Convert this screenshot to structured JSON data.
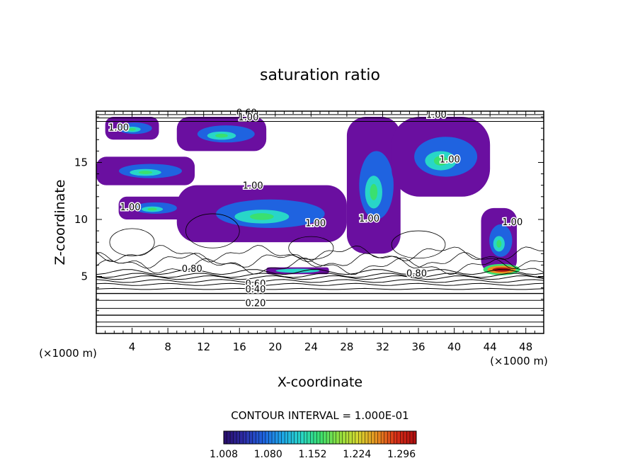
{
  "chart_data": {
    "type": "heatmap",
    "title": "saturation ratio",
    "xlabel": "X-coordinate",
    "ylabel": "Z-coordinate",
    "x_unit": "(×1000 m)",
    "y_unit": "(×1000 m)",
    "xlim": [
      0,
      50
    ],
    "ylim": [
      0,
      19.5
    ],
    "x_ticks": [
      "4",
      "8",
      "12",
      "16",
      "20",
      "24",
      "28",
      "32",
      "36",
      "40",
      "44",
      "48"
    ],
    "y_ticks": [
      "5",
      "10",
      "15"
    ],
    "contour_interval_text": "CONTOUR INTERVAL = 1.000E-01",
    "contour_labels": [
      "1.00",
      "0.60",
      "1.00",
      "1.00",
      "1.00",
      "1.00",
      "1.00",
      "1.00",
      "1.00",
      "1.00",
      "0.80",
      "0.80",
      "0.60",
      "0.40",
      "0.20"
    ],
    "colorbar": {
      "tick_labels": [
        "1.008",
        "1.080",
        "1.152",
        "1.224",
        "1.296"
      ],
      "min": 1.008,
      "max": 1.32,
      "colors": [
        "#2a0f6e",
        "#2c2ea8",
        "#1f63e0",
        "#1fa6e8",
        "#28d6c8",
        "#3ae070",
        "#8fe040",
        "#d6d830",
        "#e89020",
        "#d83018",
        "#b01010"
      ]
    },
    "supersaturation_regions": [
      {
        "x": [
          1,
          7
        ],
        "z": [
          17,
          19
        ]
      },
      {
        "x": [
          9,
          19
        ],
        "z": [
          16,
          19
        ]
      },
      {
        "x": [
          0,
          11
        ],
        "z": [
          13,
          15.5
        ]
      },
      {
        "x": [
          2.5,
          10
        ],
        "z": [
          10,
          12
        ]
      },
      {
        "x": [
          9,
          28
        ],
        "z": [
          8,
          13
        ]
      },
      {
        "x": [
          19,
          26
        ],
        "z": [
          5.2,
          5.8
        ]
      },
      {
        "x": [
          28,
          34
        ],
        "z": [
          7,
          19
        ]
      },
      {
        "x": [
          33,
          44
        ],
        "z": [
          12,
          19
        ]
      },
      {
        "x": [
          43,
          47
        ],
        "z": [
          5.3,
          11
        ]
      }
    ]
  }
}
